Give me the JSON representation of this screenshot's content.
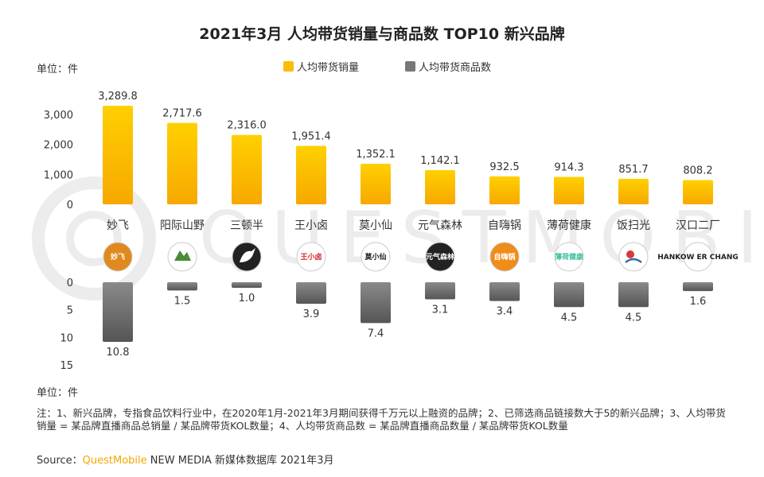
{
  "chart_data": {
    "type": "bar",
    "title": "2021年3月 人均带货销量与商品数 TOP10 新兴品牌",
    "unit_label_top": "单位：件",
    "unit_label_bottom": "单位：件",
    "categories": [
      "妙飞",
      "阳际山野",
      "三顿半",
      "王小卤",
      "莫小仙",
      "元气森林",
      "自嗨锅",
      "薄荷健康",
      "饭扫光",
      "汉口二厂"
    ],
    "series": [
      {
        "name": "人均带货销量",
        "color": "#fbbc05",
        "values": [
          3289.8,
          2717.6,
          2316.0,
          1951.4,
          1352.1,
          1142.1,
          932.5,
          914.3,
          851.7,
          808.2
        ],
        "labels": [
          "3,289.8",
          "2,717.6",
          "2,316.0",
          "1,951.4",
          "1,352.1",
          "1,142.1",
          "932.5",
          "914.3",
          "851.7",
          "808.2"
        ]
      },
      {
        "name": "人均带货商品数",
        "color": "#777777",
        "values": [
          10.8,
          1.5,
          1.0,
          3.9,
          7.4,
          3.1,
          3.4,
          4.5,
          4.5,
          1.6
        ],
        "labels": [
          "10.8",
          "1.5",
          "1.0",
          "3.9",
          "7.4",
          "3.1",
          "3.4",
          "4.5",
          "4.5",
          "1.6"
        ]
      }
    ],
    "top_axis": {
      "ylim": [
        0,
        3500
      ],
      "ticks": [
        0,
        1000,
        2000,
        3000
      ],
      "tick_labels": [
        "0",
        "1,000",
        "2,000",
        "3,000"
      ]
    },
    "bottom_axis": {
      "ylim": [
        0,
        16
      ],
      "ticks": [
        0,
        5,
        10,
        15
      ],
      "tick_labels": [
        "0",
        "5",
        "10",
        "15"
      ],
      "direction": "downward"
    },
    "legend": [
      "人均带货销量",
      "人均带货商品数"
    ],
    "logos": [
      {
        "text": "妙飞",
        "bg": "#e08a1e",
        "fg": "#ffffff"
      },
      {
        "text": "",
        "bg": "#ffffff",
        "fg": "#4a8a3a"
      },
      {
        "text": "",
        "bg": "#222222",
        "fg": "#ffffff"
      },
      {
        "text": "王小卤",
        "bg": "#ffffff",
        "fg": "#d6282b"
      },
      {
        "text": "莫小仙",
        "bg": "#ffffff",
        "fg": "#222222"
      },
      {
        "text": "元气森林",
        "bg": "#222222",
        "fg": "#ffffff"
      },
      {
        "text": "自嗨锅",
        "bg": "#f08c1a",
        "fg": "#ffffff"
      },
      {
        "text": "薄荷健康",
        "bg": "#ffffff",
        "fg": "#3cc0a0"
      },
      {
        "text": "",
        "bg": "#ffffff",
        "fg": "#3a6aa0"
      },
      {
        "text": "HANKOW ER CHANG",
        "bg": "#ffffff",
        "fg": "#222222"
      }
    ]
  },
  "footnote": "注：1、新兴品牌，专指食品饮料行业中，在2020年1月-2021年3月期间获得千万元以上融资的品牌；2、已筛选商品链接数大于5的新兴品牌；3、人均带货销量 = 某品牌直播商品总销量 / 某品牌带货KOL数量；4、人均带货商品数 = 某品牌直播商品数量 / 某品牌带货KOL数量",
  "source": {
    "prefix": "Source：",
    "brand": "QuestMobile",
    "suffix": " NEW MEDIA 新媒体数据库 2021年3月"
  },
  "watermark": "QUESTMOBILE"
}
